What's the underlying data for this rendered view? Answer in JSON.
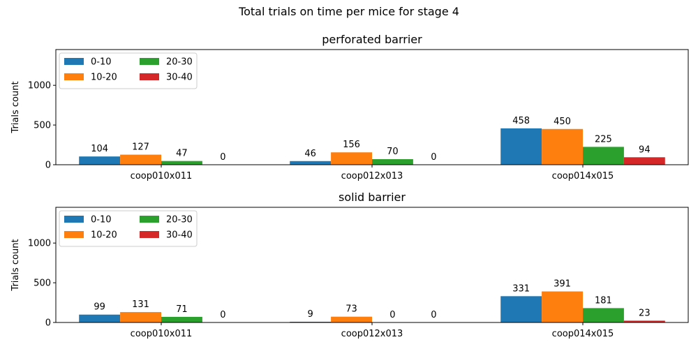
{
  "figure": {
    "suptitle": "Total trials on time per mice for stage 4"
  },
  "chart_data": [
    {
      "type": "bar",
      "title": "perforated barrier",
      "xlabel": "",
      "ylabel": "Trials count",
      "ylim": [
        0,
        1450
      ],
      "yticks": [
        0,
        500,
        1000
      ],
      "grid": false,
      "legend_position": "top-left",
      "legend_columns": 2,
      "categories": [
        "coop010x011",
        "coop012x013",
        "coop014x015"
      ],
      "series": [
        {
          "name": "0-10",
          "color": "#1f77b4",
          "values": [
            104,
            46,
            458
          ]
        },
        {
          "name": "10-20",
          "color": "#ff7f0e",
          "values": [
            127,
            156,
            450
          ]
        },
        {
          "name": "20-30",
          "color": "#2ca02c",
          "values": [
            47,
            70,
            225
          ]
        },
        {
          "name": "30-40",
          "color": "#d62728",
          "values": [
            0,
            0,
            94
          ]
        }
      ]
    },
    {
      "type": "bar",
      "title": "solid barrier",
      "xlabel": "",
      "ylabel": "Trials count",
      "ylim": [
        0,
        1450
      ],
      "yticks": [
        0,
        500,
        1000
      ],
      "grid": false,
      "legend_position": "top-left",
      "legend_columns": 2,
      "categories": [
        "coop010x011",
        "coop012x013",
        "coop014x015"
      ],
      "series": [
        {
          "name": "0-10",
          "color": "#1f77b4",
          "values": [
            99,
            9,
            331
          ]
        },
        {
          "name": "10-20",
          "color": "#ff7f0e",
          "values": [
            131,
            73,
            391
          ]
        },
        {
          "name": "20-30",
          "color": "#2ca02c",
          "values": [
            71,
            0,
            181
          ]
        },
        {
          "name": "30-40",
          "color": "#d62728",
          "values": [
            0,
            0,
            23
          ]
        }
      ]
    }
  ]
}
